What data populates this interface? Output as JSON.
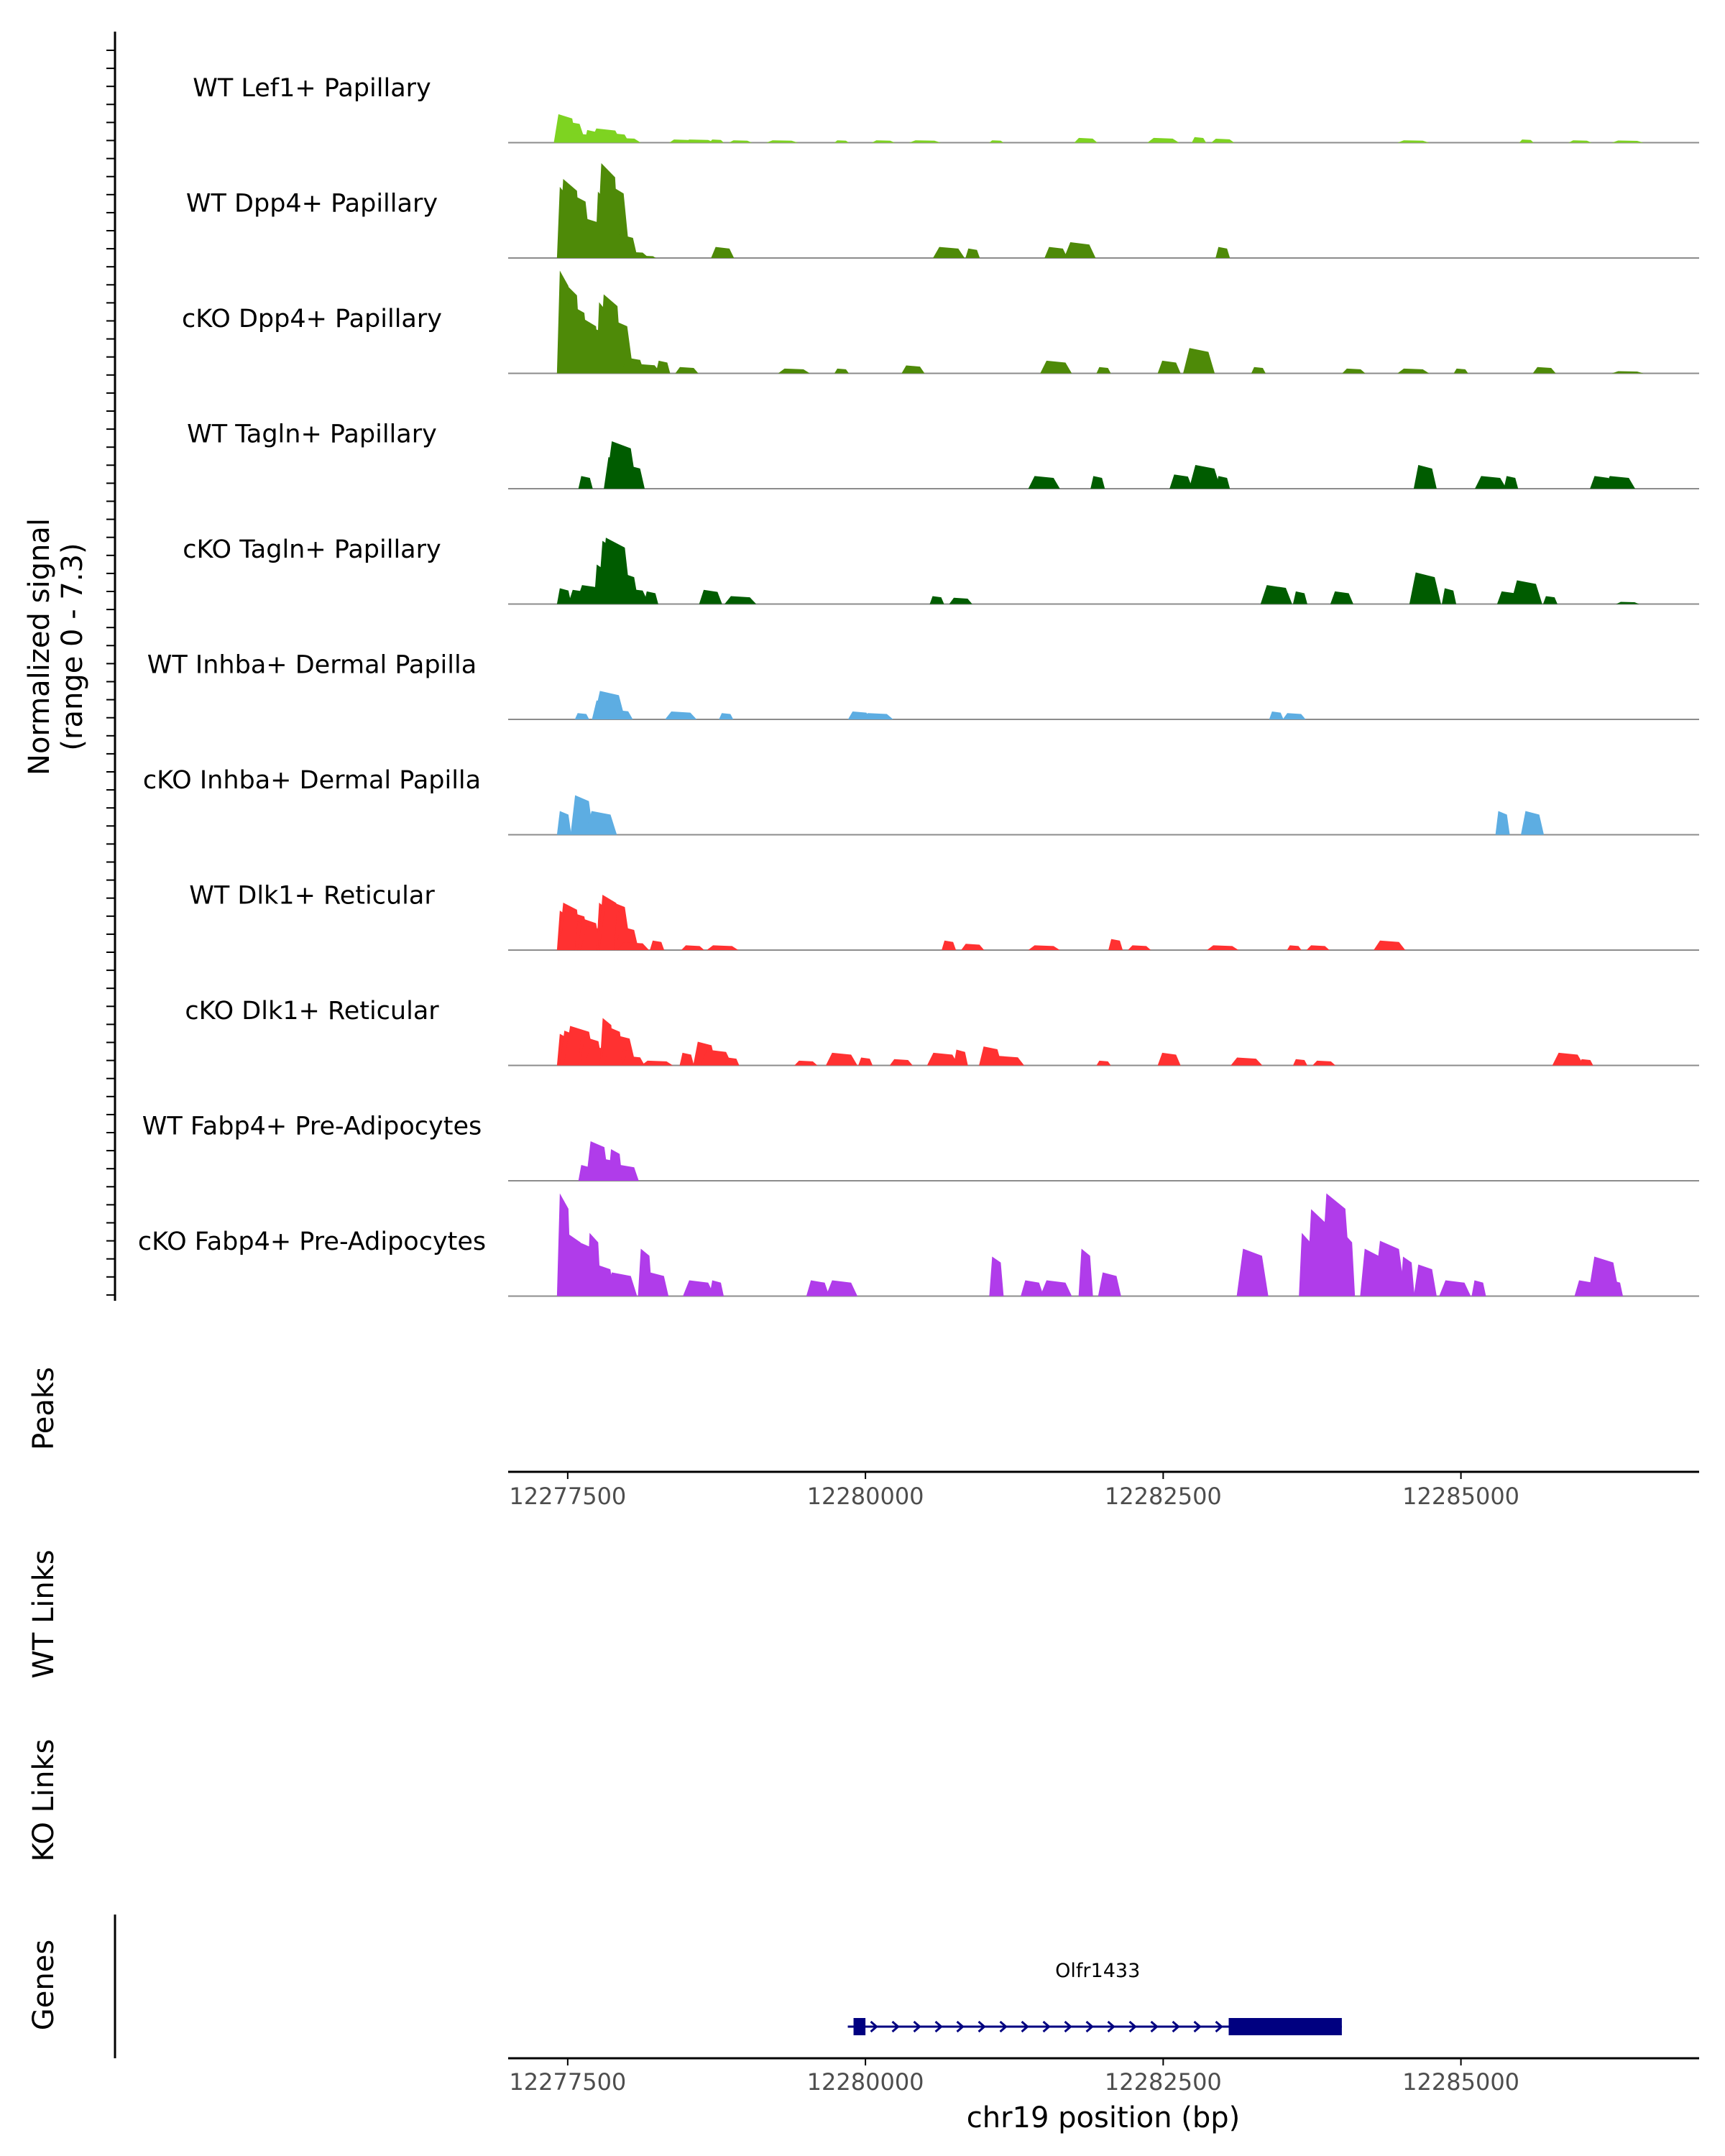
{
  "chart_data": {
    "type": "area",
    "title": "",
    "chromosome": "chr19",
    "xlabel": "chr19 position (bp)",
    "xlim": [
      12277000,
      12287000
    ],
    "xticks": [
      12277500,
      12280000,
      12282500,
      12285000
    ],
    "xtick_labels": [
      "12277500",
      "12280000",
      "12282500",
      "12285000"
    ],
    "ylabel_line1": "Normalized signal",
    "ylabel_line2": "(range 0 - 7.3)",
    "ylim": [
      0,
      7.3
    ],
    "tracks": [
      {
        "name": "WT Lef1+ Papillary",
        "color": "#7ED321",
        "points": [
          [
            12277450,
            0.8
          ],
          [
            12277480,
            1.8
          ],
          [
            12277520,
            1.4
          ],
          [
            12277560,
            0.9
          ],
          [
            12277600,
            0.6
          ],
          [
            12277650,
            0.5
          ],
          [
            12277700,
            0.8
          ],
          [
            12277760,
            0.6
          ],
          [
            12277820,
            0.9
          ],
          [
            12277870,
            0.7
          ],
          [
            12277920,
            0.6
          ],
          [
            12277980,
            0.3
          ],
          [
            12278050,
            0.15
          ],
          [
            12278450,
            0.2
          ],
          [
            12278600,
            0.2
          ],
          [
            12278750,
            0.2
          ],
          [
            12278950,
            0.15
          ],
          [
            12279300,
            0.15
          ],
          [
            12279800,
            0.15
          ],
          [
            12280150,
            0.15
          ],
          [
            12280500,
            0.15
          ],
          [
            12281100,
            0.15
          ],
          [
            12281850,
            0.3
          ],
          [
            12282500,
            0.3
          ],
          [
            12282800,
            0.35
          ],
          [
            12283000,
            0.25
          ],
          [
            12284600,
            0.15
          ],
          [
            12285550,
            0.2
          ],
          [
            12286000,
            0.15
          ],
          [
            12286400,
            0.1
          ]
        ]
      },
      {
        "name": "WT Dpp4+ Papillary",
        "color": "#4E8A08",
        "points": [
          [
            12277470,
            4.5
          ],
          [
            12277520,
            5.0
          ],
          [
            12277570,
            4.2
          ],
          [
            12277620,
            2.0
          ],
          [
            12277680,
            0.4
          ],
          [
            12277730,
            2.5
          ],
          [
            12277790,
            4.2
          ],
          [
            12277840,
            6.0
          ],
          [
            12277890,
            4.8
          ],
          [
            12277940,
            3.0
          ],
          [
            12277990,
            1.5
          ],
          [
            12278050,
            0.4
          ],
          [
            12278180,
            0.0
          ],
          [
            12278800,
            0.7
          ],
          [
            12280700,
            0.7
          ],
          [
            12280900,
            0.6
          ],
          [
            12281600,
            0.7
          ],
          [
            12281800,
            1.0
          ],
          [
            12283000,
            0.7
          ]
        ]
      },
      {
        "name": "cKO Dpp4+ Papillary",
        "color": "#4E8A08",
        "points": [
          [
            12277470,
            6.5
          ],
          [
            12277520,
            5.8
          ],
          [
            12277560,
            4.5
          ],
          [
            12277620,
            3.8
          ],
          [
            12277680,
            3.5
          ],
          [
            12277740,
            3.0
          ],
          [
            12277800,
            4.5
          ],
          [
            12277860,
            5.0
          ],
          [
            12277920,
            3.5
          ],
          [
            12277980,
            2.0
          ],
          [
            12278050,
            1.0
          ],
          [
            12278150,
            0.6
          ],
          [
            12278300,
            0.8
          ],
          [
            12278500,
            0.4
          ],
          [
            12279400,
            0.3
          ],
          [
            12279800,
            0.3
          ],
          [
            12280400,
            0.5
          ],
          [
            12281600,
            0.8
          ],
          [
            12282000,
            0.4
          ],
          [
            12282550,
            0.8
          ],
          [
            12282800,
            1.6
          ],
          [
            12283300,
            0.4
          ],
          [
            12284100,
            0.3
          ],
          [
            12284600,
            0.3
          ],
          [
            12285000,
            0.3
          ],
          [
            12285700,
            0.4
          ],
          [
            12286400,
            0.1
          ]
        ]
      },
      {
        "name": "WT Tagln+ Papillary",
        "color": "#005C00",
        "points": [
          [
            12277650,
            0.8
          ],
          [
            12277900,
            2.0
          ],
          [
            12277950,
            3.0
          ],
          [
            12278000,
            2.5
          ],
          [
            12278050,
            1.5
          ],
          [
            12281500,
            0.8
          ],
          [
            12281950,
            0.8
          ],
          [
            12282650,
            0.9
          ],
          [
            12282850,
            1.5
          ],
          [
            12283000,
            0.8
          ],
          [
            12284700,
            1.5
          ],
          [
            12285250,
            0.8
          ],
          [
            12285420,
            0.8
          ],
          [
            12286180,
            0.8
          ],
          [
            12286330,
            0.8
          ]
        ]
      },
      {
        "name": "cKO Tagln+ Papillary",
        "color": "#005C00",
        "points": [
          [
            12277470,
            1.0
          ],
          [
            12277600,
            0.9
          ],
          [
            12277700,
            1.2
          ],
          [
            12277780,
            2.5
          ],
          [
            12277850,
            4.0
          ],
          [
            12277900,
            4.2
          ],
          [
            12277950,
            3.5
          ],
          [
            12278000,
            2.0
          ],
          [
            12278050,
            1.0
          ],
          [
            12278200,
            0.8
          ],
          [
            12278700,
            0.9
          ],
          [
            12278950,
            0.5
          ],
          [
            12280600,
            0.5
          ],
          [
            12280800,
            0.4
          ],
          [
            12283450,
            1.2
          ],
          [
            12283650,
            0.8
          ],
          [
            12284000,
            0.8
          ],
          [
            12284700,
            2.0
          ],
          [
            12284900,
            1.0
          ],
          [
            12285400,
            0.8
          ],
          [
            12285550,
            1.5
          ],
          [
            12285750,
            0.5
          ],
          [
            12286400,
            0.1
          ]
        ]
      },
      {
        "name": "WT Inhba+ Dermal Papilla",
        "color": "#5DADE2",
        "points": [
          [
            12277620,
            0.4
          ],
          [
            12277800,
            1.2
          ],
          [
            12277850,
            1.8
          ],
          [
            12277900,
            1.0
          ],
          [
            12277950,
            0.6
          ],
          [
            12278450,
            0.5
          ],
          [
            12278830,
            0.4
          ],
          [
            12279950,
            0.5
          ],
          [
            12280100,
            0.4
          ],
          [
            12283450,
            0.5
          ],
          [
            12283600,
            0.4
          ]
        ]
      },
      {
        "name": "cKO Inhba+ Dermal Papilla",
        "color": "#5DADE2",
        "points": [
          [
            12277470,
            1.5
          ],
          [
            12277620,
            2.5
          ],
          [
            12277780,
            1.5
          ],
          [
            12285350,
            1.5
          ],
          [
            12285600,
            1.5
          ]
        ]
      },
      {
        "name": "WT Dlk1+ Reticular",
        "color": "#FF3131",
        "points": [
          [
            12277470,
            2.5
          ],
          [
            12277520,
            3.0
          ],
          [
            12277560,
            2.5
          ],
          [
            12277620,
            1.8
          ],
          [
            12277680,
            2.0
          ],
          [
            12277740,
            1.5
          ],
          [
            12277800,
            3.0
          ],
          [
            12277850,
            3.5
          ],
          [
            12277900,
            3.2
          ],
          [
            12277950,
            2.5
          ],
          [
            12278000,
            1.5
          ],
          [
            12278050,
            0.5
          ],
          [
            12278250,
            0.6
          ],
          [
            12278550,
            0.3
          ],
          [
            12278800,
            0.3
          ],
          [
            12280700,
            0.6
          ],
          [
            12280900,
            0.4
          ],
          [
            12281500,
            0.3
          ],
          [
            12282100,
            0.7
          ],
          [
            12282300,
            0.3
          ],
          [
            12283000,
            0.3
          ],
          [
            12283600,
            0.3
          ],
          [
            12283800,
            0.3
          ],
          [
            12284400,
            0.6
          ]
        ]
      },
      {
        "name": "cKO Dlk1+ Reticular",
        "color": "#FF3131",
        "points": [
          [
            12277470,
            2.0
          ],
          [
            12277530,
            2.2
          ],
          [
            12277600,
            2.5
          ],
          [
            12277650,
            2.0
          ],
          [
            12277700,
            1.8
          ],
          [
            12277770,
            1.2
          ],
          [
            12277830,
            3.0
          ],
          [
            12277880,
            2.5
          ],
          [
            12277940,
            2.0
          ],
          [
            12278000,
            1.0
          ],
          [
            12278050,
            0.6
          ],
          [
            12278250,
            0.3
          ],
          [
            12278500,
            0.8
          ],
          [
            12278650,
            1.5
          ],
          [
            12278750,
            1.0
          ],
          [
            12278880,
            0.5
          ],
          [
            12279500,
            0.3
          ],
          [
            12279800,
            0.8
          ],
          [
            12280000,
            0.5
          ],
          [
            12280300,
            0.4
          ],
          [
            12280650,
            0.8
          ],
          [
            12280800,
            1.0
          ],
          [
            12281050,
            1.2
          ],
          [
            12281200,
            0.6
          ],
          [
            12282000,
            0.3
          ],
          [
            12282550,
            0.8
          ],
          [
            12283200,
            0.5
          ],
          [
            12283650,
            0.4
          ],
          [
            12283850,
            0.3
          ],
          [
            12285900,
            0.8
          ],
          [
            12286050,
            0.4
          ]
        ]
      },
      {
        "name": "WT Fabp4+ Pre-Adipocytes",
        "color": "#B03CEA",
        "points": [
          [
            12277650,
            1.0
          ],
          [
            12277750,
            2.5
          ],
          [
            12277800,
            1.5
          ],
          [
            12277900,
            2.0
          ],
          [
            12278000,
            1.0
          ]
        ]
      },
      {
        "name": "cKO Fabp4+ Pre-Adipocytes",
        "color": "#B03CEA",
        "points": [
          [
            12277470,
            6.5
          ],
          [
            12277550,
            4.0
          ],
          [
            12277650,
            3.5
          ],
          [
            12277720,
            4.0
          ],
          [
            12277800,
            2.0
          ],
          [
            12277950,
            1.5
          ],
          [
            12278150,
            3.0
          ],
          [
            12278250,
            1.5
          ],
          [
            12278600,
            1.0
          ],
          [
            12278750,
            1.0
          ],
          [
            12279600,
            1.0
          ],
          [
            12279800,
            1.0
          ],
          [
            12281100,
            2.5
          ],
          [
            12281400,
            1.0
          ],
          [
            12281600,
            1.0
          ],
          [
            12281850,
            3.0
          ],
          [
            12282050,
            1.5
          ],
          [
            12283250,
            3.0
          ],
          [
            12283700,
            4.0
          ],
          [
            12283800,
            5.5
          ],
          [
            12283950,
            6.5
          ],
          [
            12284050,
            4.0
          ],
          [
            12284250,
            3.0
          ],
          [
            12284400,
            3.5
          ],
          [
            12284550,
            2.5
          ],
          [
            12284700,
            2.0
          ],
          [
            12284950,
            1.0
          ],
          [
            12285150,
            1.0
          ],
          [
            12286050,
            1.0
          ],
          [
            12286200,
            2.5
          ],
          [
            12286300,
            1.0
          ]
        ]
      }
    ],
    "other_panels": [
      {
        "label": "Peaks"
      },
      {
        "label": "WT Links"
      },
      {
        "label": "KO Links"
      },
      {
        "label": "Genes"
      }
    ],
    "genes": [
      {
        "name": "Olfr1433",
        "strand": "+",
        "start": 12279900,
        "end": 12284000,
        "exons": [
          [
            12279900,
            12280000
          ],
          [
            12283050,
            12284000
          ]
        ]
      }
    ]
  }
}
